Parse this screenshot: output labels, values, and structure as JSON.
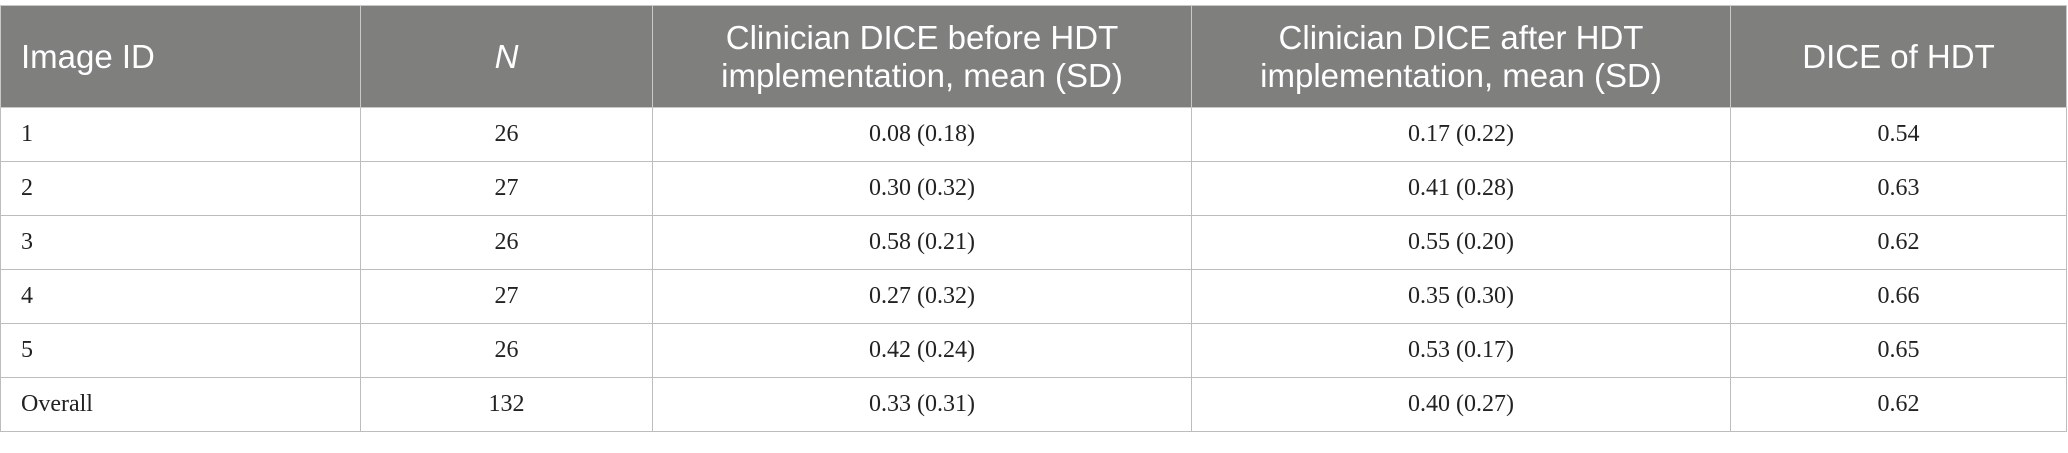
{
  "table": {
    "headers": [
      "Image ID",
      "N",
      "Clinician DICE before HDT implementation, mean (SD)",
      "Clinician DICE after HDT implementation, mean (SD)",
      "DICE of HDT"
    ],
    "rows": [
      [
        "1",
        "26",
        "0.08 (0.18)",
        "0.17 (0.22)",
        "0.54"
      ],
      [
        "2",
        "27",
        "0.30 (0.32)",
        "0.41 (0.28)",
        "0.63"
      ],
      [
        "3",
        "26",
        "0.58 (0.21)",
        "0.55 (0.20)",
        "0.62"
      ],
      [
        "4",
        "27",
        "0.27 (0.32)",
        "0.35 (0.30)",
        "0.66"
      ],
      [
        "5",
        "26",
        "0.42 (0.24)",
        "0.53 (0.17)",
        "0.65"
      ],
      [
        "Overall",
        "132",
        "0.33 (0.31)",
        "0.40 (0.27)",
        "0.62"
      ]
    ]
  }
}
